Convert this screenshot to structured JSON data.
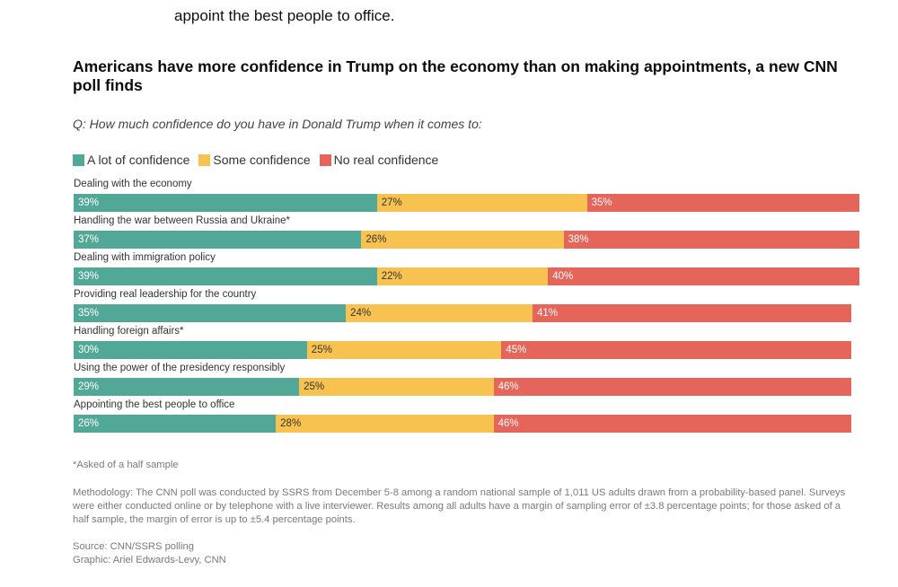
{
  "article": {
    "lead_text": "appoint the best people to office."
  },
  "chart_data": {
    "type": "bar",
    "orientation": "horizontal-stacked",
    "title": "Americans have more confidence in Trump on the economy than on making appointments, a new CNN poll finds",
    "subtitle": "Q: How much confidence do you have in Donald Trump when it comes to:",
    "legend_position": "top-left",
    "series": [
      {
        "name": "A lot of confidence",
        "color": "#52a896",
        "text_color": "#ffffff",
        "values": [
          39,
          37,
          39,
          35,
          30,
          29,
          26
        ]
      },
      {
        "name": "Some confidence",
        "color": "#f7c24f",
        "text_color": "#333333",
        "values": [
          27,
          26,
          22,
          24,
          25,
          25,
          28
        ]
      },
      {
        "name": "No real confidence",
        "color": "#e6655a",
        "text_color": "#ffffff",
        "values": [
          35,
          38,
          40,
          41,
          45,
          46,
          46
        ]
      }
    ],
    "categories": [
      "Dealing with the economy",
      "Handling the war between Russia and Ukraine*",
      "Dealing with immigration policy",
      "Providing real leadership for the country",
      "Handling foreign affairs*",
      "Using the power of the presidency responsibly",
      "Appointing the best people to office"
    ]
  },
  "footnote": "*Asked of a half sample",
  "methodology": "Methodology: The CNN poll was conducted by SSRS from December 5-8 among a random national sample of 1,011 US adults drawn from a probability-based panel. Surveys were either conducted online or by telephone with a live interviewer. Results among all adults have a margin of sampling error of ±3.8 percentage points; for those asked of a half sample, the margin of error is up to ±5.4 percentage points.",
  "source": "Source: CNN/SSRS polling",
  "graphic": "Graphic: Ariel Edwards-Levy, CNN"
}
